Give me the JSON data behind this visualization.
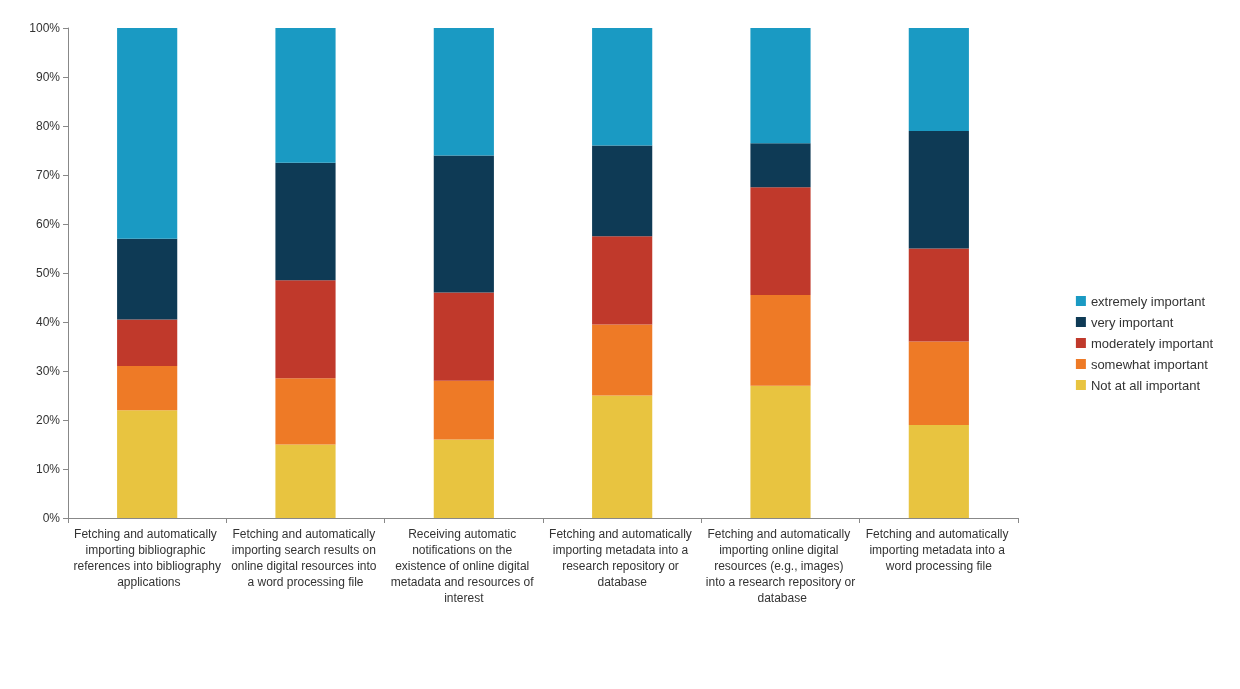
{
  "chart_data": {
    "type": "bar",
    "stacked": true,
    "legend": "right",
    "grid": false,
    "categories": [
      "Fetching and automatically importing bibliographic references into bibliography applications",
      "Fetching and automatically importing search results on online digital resources into a word processing file",
      "Receiving automatic notifications on the existence of online digital metadata and resources of interest",
      "Fetching and automatically importing metadata into a research repository or database",
      "Fetching and automatically importing online digital resources (e.g., images) into a research repository or database",
      "Fetching and automatically importing metadata into a word processing file"
    ],
    "ylim": [
      0,
      100
    ],
    "yticks": [
      {
        "value": 0,
        "label": "0%"
      },
      {
        "value": 10,
        "label": "10%"
      },
      {
        "value": 20,
        "label": "20%"
      },
      {
        "value": 30,
        "label": "30%"
      },
      {
        "value": 40,
        "label": "40%"
      },
      {
        "value": 50,
        "label": "50%"
      },
      {
        "value": 60,
        "label": "60%"
      },
      {
        "value": 70,
        "label": "70%"
      },
      {
        "value": 80,
        "label": "80%"
      },
      {
        "value": 90,
        "label": "90%"
      },
      {
        "value": 100,
        "label": "100%"
      }
    ],
    "series": [
      {
        "name": "Not at all important",
        "color": "#e8c440",
        "values": [
          22,
          15,
          16,
          25,
          27,
          19
        ]
      },
      {
        "name": "somewhat important",
        "color": "#ee7a26",
        "values": [
          9,
          13.5,
          12,
          14.5,
          18.5,
          17
        ]
      },
      {
        "name": "moderately important",
        "color": "#c0392b",
        "values": [
          9.5,
          20,
          18,
          18,
          22,
          19
        ]
      },
      {
        "name": "very important",
        "color": "#0e3a55",
        "values": [
          16.5,
          24,
          28,
          18.5,
          9,
          24
        ]
      },
      {
        "name": "extremely important",
        "color": "#1a9ac3",
        "values": [
          43,
          27.5,
          26,
          24,
          23.5,
          21
        ]
      }
    ]
  }
}
